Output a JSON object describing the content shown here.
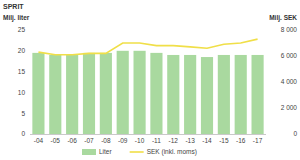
{
  "chart_data": {
    "type": "bar",
    "title": "SPRIT",
    "y_label": "Milj. liter",
    "y2_label": "Milj. SEK",
    "categories": [
      "-04",
      "-05",
      "-06",
      "-07",
      "-08",
      "-09",
      "-10",
      "-11",
      "-12",
      "-13",
      "-14",
      "-15",
      "-16",
      "-17"
    ],
    "series": [
      {
        "name": "Liter",
        "type": "bar",
        "color": "#a9d99f",
        "values": [
          19.5,
          19,
          19,
          19.5,
          19.5,
          20,
          20,
          19.5,
          19,
          19,
          18.5,
          19,
          19,
          19
        ]
      },
      {
        "name": "SEK (inkl. moms)",
        "type": "line",
        "color": "#f0df48",
        "axis": "y2",
        "values": [
          6300,
          6100,
          6100,
          6200,
          6200,
          7000,
          7000,
          6800,
          6800,
          6700,
          6600,
          6900,
          7000,
          7300
        ]
      }
    ],
    "ylim": [
      0,
      25
    ],
    "yticks": [
      0,
      5,
      10,
      15,
      20,
      25
    ],
    "y2lim": [
      0,
      8000
    ],
    "y2ticks": [
      0,
      {
        "value": 2000,
        "label": "2 000"
      },
      {
        "value": 4000,
        "label": "4 000"
      },
      {
        "value": 6000,
        "label": "6 000"
      },
      {
        "value": 8000,
        "label": "8 000"
      }
    ],
    "grid": false,
    "legend": "bottom"
  }
}
